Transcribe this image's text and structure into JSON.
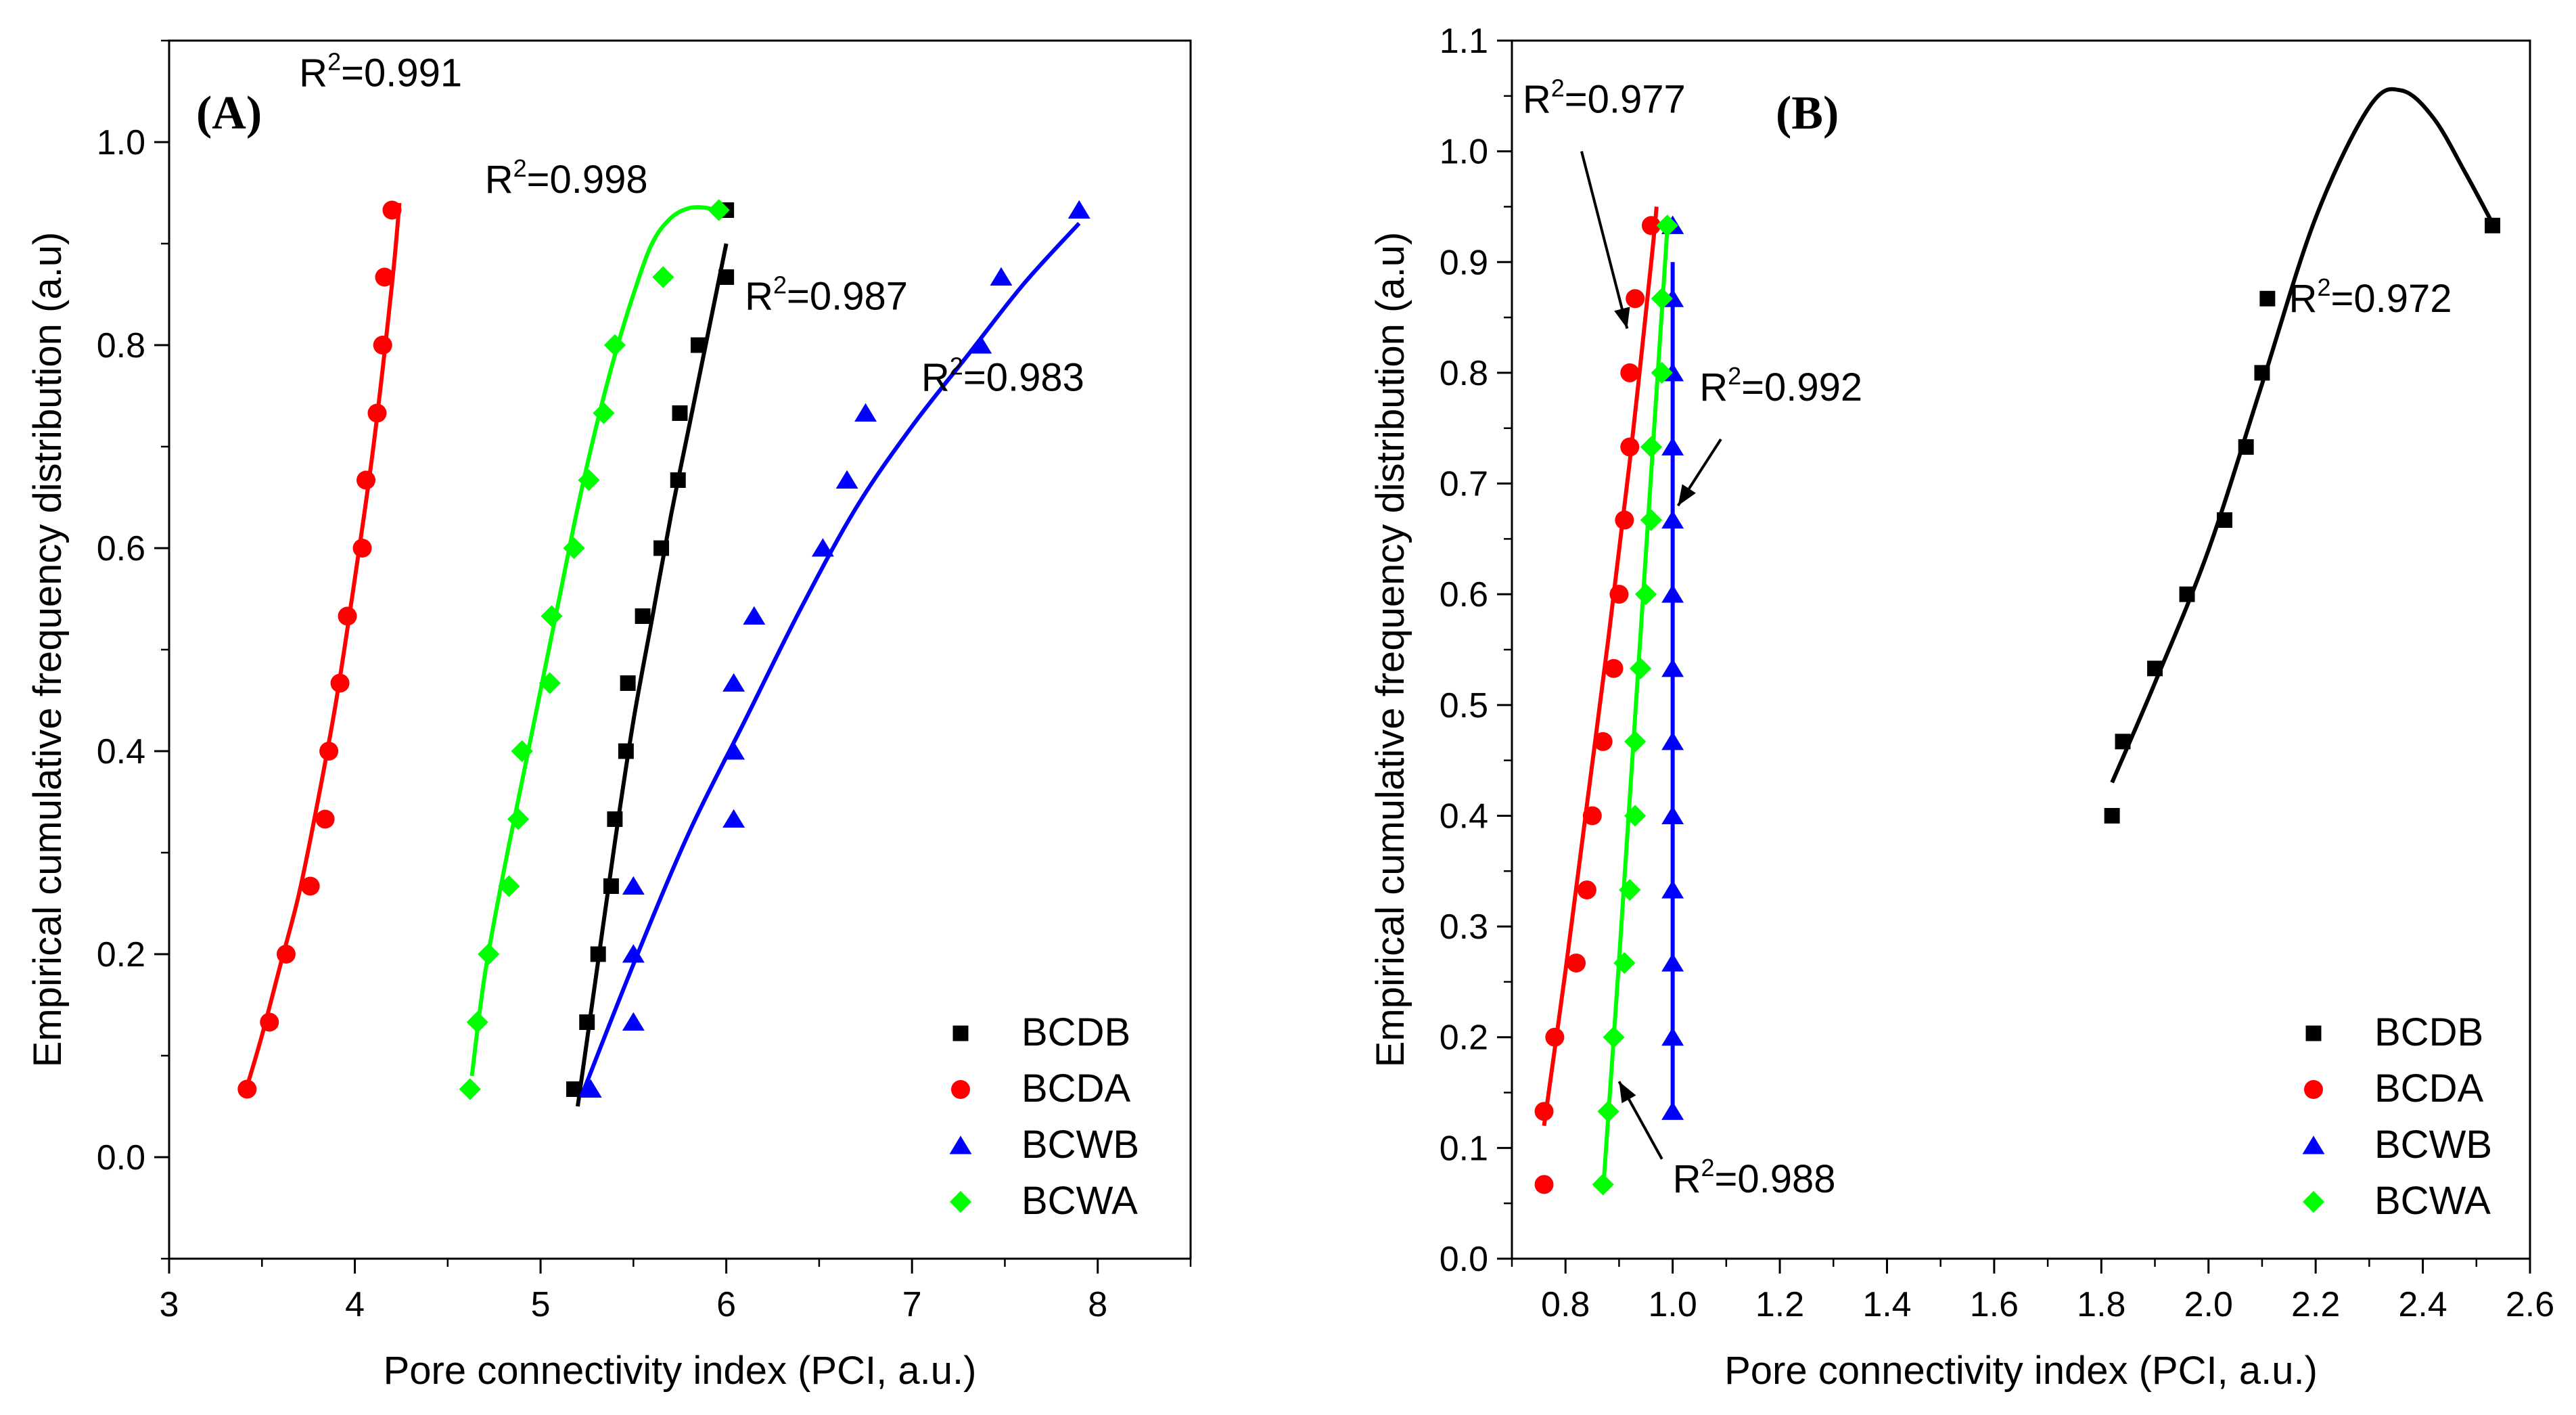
{
  "chart_data": [
    {
      "type": "scatter",
      "panel_label": "(A)",
      "xlabel": "Pore connectivity index (PCI, a.u.)",
      "ylabel": "Empirical cumulative frequency distribution (a.u)",
      "xlim": [
        3,
        8.5
      ],
      "ylim": [
        -0.1,
        1.1
      ],
      "xticks": [
        3,
        4,
        5,
        6,
        7,
        8
      ],
      "xtick_labels": [
        "3",
        "4",
        "5",
        "6",
        "7",
        "8"
      ],
      "yticks": [
        0.0,
        0.2,
        0.4,
        0.6,
        0.8,
        1.0
      ],
      "ytick_labels": [
        "0.0",
        "0.2",
        "0.4",
        "0.6",
        "0.8",
        "1.0"
      ],
      "legend_position": "bottom-right",
      "series": [
        {
          "name": "BCDB",
          "marker": "square",
          "color": "#000000",
          "x": [
            5.18,
            5.25,
            5.31,
            5.38,
            5.4,
            5.46,
            5.47,
            5.55,
            5.65,
            5.74,
            5.75,
            5.85,
            6.0,
            6.0
          ],
          "y": [
            0.067,
            0.133,
            0.2,
            0.267,
            0.333,
            0.4,
            0.467,
            0.533,
            0.6,
            0.667,
            0.733,
            0.8,
            0.867,
            0.933
          ],
          "fit": {
            "x": [
              5.2,
              5.3,
              5.4,
              5.5,
              5.6,
              5.7,
              5.8,
              5.9,
              6.0
            ],
            "y": [
              0.05,
              0.18,
              0.31,
              0.43,
              0.53,
              0.63,
              0.72,
              0.81,
              0.9
            ]
          },
          "r2_label": "R2=0.987"
        },
        {
          "name": "BCDA",
          "marker": "circle",
          "color": "#ff0000",
          "x": [
            3.42,
            3.54,
            3.63,
            3.76,
            3.84,
            3.86,
            3.92,
            3.96,
            4.04,
            4.06,
            4.12,
            4.15,
            4.16,
            4.2
          ],
          "y": [
            0.067,
            0.133,
            0.2,
            0.267,
            0.333,
            0.4,
            0.467,
            0.533,
            0.6,
            0.667,
            0.733,
            0.8,
            0.867,
            0.933
          ],
          "fit": {
            "x": [
              3.42,
              3.5,
              3.6,
              3.7,
              3.8,
              3.9,
              4.0,
              4.1,
              4.2,
              4.24
            ],
            "y": [
              0.07,
              0.12,
              0.19,
              0.26,
              0.35,
              0.45,
              0.57,
              0.7,
              0.86,
              0.94
            ]
          },
          "r2_label": "R2=0.991"
        },
        {
          "name": "BCWB",
          "marker": "triangle",
          "color": "#0000ff",
          "x": [
            5.27,
            5.5,
            5.5,
            5.5,
            6.04,
            6.04,
            6.04,
            6.15,
            6.52,
            6.65,
            6.75,
            7.37,
            7.48,
            7.9
          ],
          "y": [
            0.067,
            0.133,
            0.2,
            0.267,
            0.333,
            0.4,
            0.467,
            0.533,
            0.6,
            0.667,
            0.733,
            0.8,
            0.867,
            0.933
          ],
          "fit": {
            "x": [
              5.22,
              5.5,
              5.8,
              6.1,
              6.4,
              6.7,
              7.0,
              7.3,
              7.6,
              7.9
            ],
            "y": [
              0.06,
              0.19,
              0.32,
              0.43,
              0.54,
              0.64,
              0.72,
              0.79,
              0.86,
              0.92
            ]
          },
          "r2_label": "R2=0.983"
        },
        {
          "name": "BCWA",
          "marker": "diamond",
          "color": "#00ff00",
          "x": [
            4.62,
            4.66,
            4.72,
            4.83,
            4.88,
            4.9,
            5.05,
            5.06,
            5.18,
            5.26,
            5.34,
            5.4,
            5.66,
            5.96
          ],
          "y": [
            0.067,
            0.133,
            0.2,
            0.267,
            0.333,
            0.4,
            0.467,
            0.533,
            0.6,
            0.667,
            0.733,
            0.8,
            0.867,
            0.933
          ],
          "fit": {
            "x": [
              4.63,
              4.7,
              4.8,
              4.9,
              5.0,
              5.1,
              5.2,
              5.3,
              5.4,
              5.5,
              5.6,
              5.7,
              5.8,
              5.9,
              5.97
            ],
            "y": [
              0.08,
              0.18,
              0.28,
              0.37,
              0.46,
              0.55,
              0.64,
              0.72,
              0.79,
              0.85,
              0.9,
              0.925,
              0.935,
              0.935,
              0.93
            ]
          },
          "r2_label": "R2=0.998"
        }
      ]
    },
    {
      "type": "scatter",
      "panel_label": "(B)",
      "xlabel": "Pore connectivity index (PCI, a.u.)",
      "ylabel": "Empirical cumulative frequency distribution (a.u)",
      "xlim": [
        0.7,
        2.6
      ],
      "ylim": [
        0.0,
        1.1
      ],
      "xticks": [
        0.8,
        1.0,
        1.2,
        1.4,
        1.6,
        1.8,
        2.0,
        2.2,
        2.4,
        2.6
      ],
      "xtick_labels": [
        "0.8",
        "1.0",
        "1.2",
        "1.4",
        "1.6",
        "1.8",
        "2.0",
        "2.2",
        "2.4",
        "2.6"
      ],
      "yticks": [
        0.0,
        0.1,
        0.2,
        0.3,
        0.4,
        0.5,
        0.6,
        0.7,
        0.8,
        0.9,
        1.0,
        1.1
      ],
      "ytick_labels": [
        "0.0",
        "0.1",
        "0.2",
        "0.3",
        "0.4",
        "0.5",
        "0.6",
        "0.7",
        "0.8",
        "0.9",
        "1.0",
        "1.1"
      ],
      "legend_position": "bottom-right",
      "series": [
        {
          "name": "BCDB",
          "marker": "square",
          "color": "#000000",
          "x": [
            1.82,
            1.84,
            1.9,
            1.96,
            2.03,
            2.07,
            2.1,
            2.11,
            2.53
          ],
          "y": [
            0.4,
            0.467,
            0.533,
            0.6,
            0.667,
            0.733,
            0.8,
            0.867,
            0.933
          ],
          "fit": {
            "x": [
              1.82,
              1.9,
              2.0,
              2.1,
              2.2,
              2.3,
              2.36,
              2.42,
              2.48,
              2.53
            ],
            "y": [
              0.43,
              0.52,
              0.64,
              0.79,
              0.94,
              1.04,
              1.055,
              1.03,
              0.98,
              0.935
            ]
          },
          "r2_label": "R2=0.972"
        },
        {
          "name": "BCDA",
          "marker": "circle",
          "color": "#ff0000",
          "x": [
            0.76,
            0.76,
            0.78,
            0.82,
            0.84,
            0.85,
            0.87,
            0.89,
            0.9,
            0.91,
            0.92,
            0.92,
            0.93,
            0.96
          ],
          "y": [
            0.067,
            0.133,
            0.2,
            0.267,
            0.333,
            0.4,
            0.467,
            0.533,
            0.6,
            0.667,
            0.733,
            0.8,
            0.867,
            0.933
          ],
          "fit": {
            "x": [
              0.76,
              0.8,
              0.84,
              0.88,
              0.92,
              0.96,
              0.97
            ],
            "y": [
              0.12,
              0.26,
              0.41,
              0.56,
              0.72,
              0.9,
              0.95
            ]
          },
          "r2_label": "R2=0.977"
        },
        {
          "name": "BCWB",
          "marker": "triangle",
          "color": "#0000ff",
          "x": [
            1.0,
            1.0,
            1.0,
            1.0,
            1.0,
            1.0,
            1.0,
            1.0,
            1.0,
            1.0,
            1.0,
            1.0,
            1.0,
            1.0
          ],
          "y": [
            0.133,
            0.2,
            0.267,
            0.333,
            0.4,
            0.467,
            0.533,
            0.6,
            0.667,
            0.733,
            0.8,
            0.867,
            0.933,
            0.933
          ],
          "fit": {
            "x": [
              1.0,
              1.0
            ],
            "y": [
              0.13,
              0.9
            ]
          },
          "r2_label": "R2=0.992"
        },
        {
          "name": "BCWA",
          "marker": "diamond",
          "color": "#00ff00",
          "x": [
            0.87,
            0.88,
            0.89,
            0.91,
            0.92,
            0.93,
            0.93,
            0.94,
            0.95,
            0.96,
            0.96,
            0.98,
            0.98,
            0.99
          ],
          "y": [
            0.067,
            0.133,
            0.2,
            0.267,
            0.333,
            0.4,
            0.467,
            0.533,
            0.6,
            0.667,
            0.733,
            0.8,
            0.867,
            0.933
          ],
          "fit": {
            "x": [
              0.87,
              0.9,
              0.93,
              0.96,
              0.99
            ],
            "y": [
              0.06,
              0.27,
              0.49,
              0.71,
              0.93
            ]
          },
          "r2_label": "R2=0.988"
        }
      ]
    }
  ]
}
